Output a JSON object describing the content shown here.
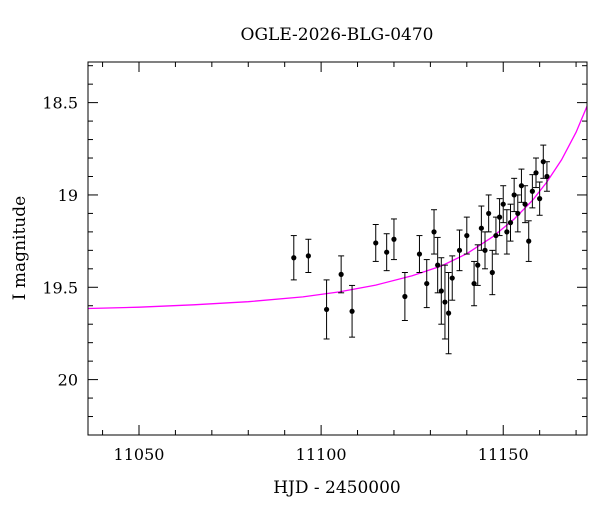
{
  "chart_data": {
    "type": "scatter",
    "title": "OGLE-2026-BLG-0470",
    "xlabel": "HJD - 2450000",
    "ylabel": "I magnitude",
    "xlim": [
      11036,
      11173
    ],
    "ylim": [
      20.3,
      18.28
    ],
    "y_inverted": true,
    "grid": false,
    "x_ticks": [
      11050,
      11100,
      11150
    ],
    "x_tick_labels": [
      "11050",
      "11100",
      "11150"
    ],
    "y_ticks": [
      18.5,
      19,
      19.5,
      20
    ],
    "y_tick_labels": [
      "18.5",
      "19",
      "19.5",
      "20"
    ],
    "x_minor_step": 10,
    "y_minor_step": 0.1,
    "colors": {
      "points": "#000000",
      "model": "#ff00ff",
      "frame": "#000000"
    },
    "series": [
      {
        "kind": "points_with_errorbars",
        "x": [
          11092.5,
          11096.5,
          11101.5,
          11105.5,
          11108.5,
          11115,
          11118,
          11120,
          11123,
          11127,
          11129,
          11131,
          11132,
          11133,
          11134,
          11135,
          11136,
          11138,
          11140,
          11142,
          11143,
          11144,
          11145,
          11146,
          11147,
          11148,
          11149,
          11150,
          11151,
          11152,
          11153,
          11154,
          11155,
          11156,
          11157,
          11158,
          11159,
          11160,
          11161,
          11162
        ],
        "y": [
          19.34,
          19.33,
          19.62,
          19.43,
          19.63,
          19.26,
          19.31,
          19.24,
          19.55,
          19.32,
          19.48,
          19.2,
          19.38,
          19.52,
          19.58,
          19.64,
          19.45,
          19.3,
          19.22,
          19.48,
          19.38,
          19.18,
          19.3,
          19.1,
          19.42,
          19.22,
          19.12,
          19.05,
          19.2,
          19.15,
          19.0,
          19.1,
          18.95,
          19.05,
          19.25,
          18.98,
          18.88,
          19.02,
          18.82,
          18.9
        ],
        "err": [
          0.12,
          0.09,
          0.16,
          0.1,
          0.14,
          0.1,
          0.1,
          0.11,
          0.13,
          0.1,
          0.13,
          0.12,
          0.15,
          0.18,
          0.2,
          0.22,
          0.12,
          0.11,
          0.1,
          0.12,
          0.11,
          0.12,
          0.1,
          0.1,
          0.12,
          0.1,
          0.1,
          0.1,
          0.12,
          0.1,
          0.09,
          0.1,
          0.09,
          0.1,
          0.11,
          0.09,
          0.08,
          0.09,
          0.09,
          0.08
        ]
      },
      {
        "kind": "model_curve",
        "x": [
          11036,
          11050,
          11065,
          11080,
          11095,
          11105,
          11115,
          11125,
          11133,
          11140,
          11147,
          11153,
          11158,
          11162,
          11166,
          11170,
          11173
        ],
        "y": [
          19.615,
          19.608,
          19.595,
          19.578,
          19.552,
          19.525,
          19.488,
          19.438,
          19.385,
          19.318,
          19.228,
          19.13,
          19.03,
          18.93,
          18.81,
          18.66,
          18.52
        ]
      }
    ]
  }
}
